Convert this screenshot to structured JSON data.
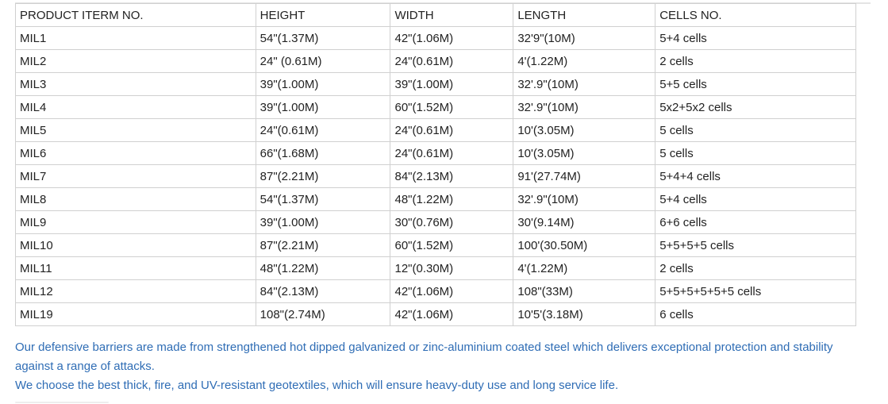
{
  "table": {
    "headers": [
      "PRODUCT ITERM NO.",
      "HEIGHT",
      "WIDTH",
      "LENGTH",
      "CELLS NO."
    ],
    "rows": [
      [
        "MIL1",
        "54\"(1.37M)",
        "42\"(1.06M)",
        "32'9\"(10M)",
        "5+4 cells"
      ],
      [
        "MIL2",
        "24\" (0.61M)",
        "24\"(0.61M)",
        "4'(1.22M)",
        "2 cells"
      ],
      [
        "MIL3",
        "39\"(1.00M)",
        "39\"(1.00M)",
        "32'.9\"(10M)",
        "5+5 cells"
      ],
      [
        "MIL4",
        "39\"(1.00M)",
        "60\"(1.52M)",
        "32'.9\"(10M)",
        "5x2+5x2 cells"
      ],
      [
        "MIL5",
        "24\"(0.61M)",
        "24\"(0.61M)",
        "10'(3.05M)",
        "5 cells"
      ],
      [
        "MIL6",
        "66\"(1.68M)",
        "24\"(0.61M)",
        "10'(3.05M)",
        "5 cells"
      ],
      [
        "MIL7",
        "87\"(2.21M)",
        "84\"(2.13M)",
        "91'(27.74M)",
        "5+4+4 cells"
      ],
      [
        "MIL8",
        "54\"(1.37M)",
        "48\"(1.22M)",
        "32'.9\"(10M)",
        "5+4 cells"
      ],
      [
        "MIL9",
        "39\"(1.00M)",
        "30\"(0.76M)",
        "30'(9.14M)",
        "6+6 cells"
      ],
      [
        "MIL10",
        "87\"(2.21M)",
        "60\"(1.52M)",
        "100'(30.50M)",
        "5+5+5+5 cells"
      ],
      [
        "MIL11",
        "48\"(1.22M)",
        "12\"(0.30M)",
        "4'(1.22M)",
        "2 cells"
      ],
      [
        "MIL12",
        "84\"(2.13M)",
        "42\"(1.06M)",
        "108\"(33M)",
        "5+5+5+5+5+5 cells"
      ],
      [
        "MIL19",
        "108\"(2.74M)",
        "42\"(1.06M)",
        "10'5'(3.18M)",
        "6 cells"
      ]
    ]
  },
  "notes": [
    "Our defensive barriers are made from strengthened hot dipped galvanized or zinc-aluminium coated steel which delivers exceptional protection and stability against a range of attacks.",
    "We choose the best thick, fire, and UV-resistant geotextiles, which will ensure heavy-duty use and long service life."
  ],
  "colors": {
    "note_text": "#2f6db5",
    "border": "#d0d0d0"
  }
}
